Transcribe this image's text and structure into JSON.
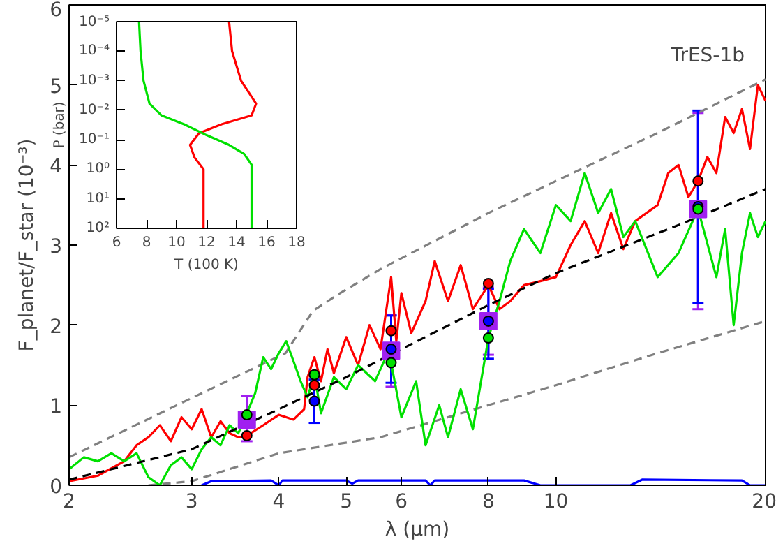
{
  "chart_data": [
    {
      "type": "line",
      "xlabel": "λ (μm)",
      "ylabel": "F_planet/F_star (10⁻³)",
      "annotations": [
        "TrES-1b"
      ],
      "log": "x",
      "xlim": [
        2,
        20
      ],
      "xticks": [
        2,
        3,
        4,
        5,
        6,
        8,
        10,
        20
      ],
      "ylim": [
        0,
        6
      ],
      "yticks": [
        0,
        1,
        2,
        3,
        4,
        5,
        6
      ],
      "grid": false,
      "series": [
        {
          "type": "line",
          "color": "#808080",
          "line_style": "dashed",
          "x": [
            2,
            3,
            4.09,
            4.48,
            4.9,
            5.6,
            8,
            10,
            14,
            20
          ],
          "values": [
            0.35,
            1.09,
            1.65,
            2.18,
            2.4,
            2.7,
            3.4,
            3.8,
            4.4,
            5.07
          ]
        },
        {
          "type": "line",
          "color": "#808080",
          "line_style": "dashed",
          "x": [
            2.6,
            3,
            4,
            5.6,
            8,
            10,
            14,
            20
          ],
          "values": [
            0,
            0.05,
            0.4,
            0.6,
            1.0,
            1.25,
            1.65,
            2.05
          ]
        },
        {
          "type": "line",
          "color": "#ff0000",
          "line_style": "solid",
          "x": [
            2,
            2.2,
            2.4,
            2.5,
            2.6,
            2.7,
            2.8,
            2.9,
            3.0,
            3.1,
            3.2,
            3.3,
            3.4,
            3.5,
            3.6,
            3.8,
            4.0,
            4.2,
            4.35,
            4.4,
            4.5,
            4.6,
            4.7,
            4.8,
            5.0,
            5.2,
            5.4,
            5.6,
            5.8,
            5.9,
            6.0,
            6.2,
            6.5,
            6.7,
            7.0,
            7.3,
            7.6,
            8.0,
            8.3,
            8.6,
            9.0,
            9.5,
            10,
            10.5,
            11,
            11.5,
            12,
            12.5,
            13,
            14,
            14.5,
            15,
            15.5,
            16,
            16.5,
            17,
            17.5,
            18,
            18.5,
            19,
            19.5,
            20
          ],
          "values": [
            0.05,
            0.12,
            0.3,
            0.5,
            0.6,
            0.75,
            0.55,
            0.85,
            0.7,
            0.95,
            0.6,
            0.8,
            0.65,
            0.6,
            0.62,
            0.75,
            0.88,
            0.82,
            0.95,
            1.35,
            1.6,
            1.3,
            1.7,
            1.4,
            1.85,
            1.5,
            2.0,
            1.7,
            2.6,
            1.8,
            2.4,
            1.9,
            2.3,
            2.8,
            2.3,
            2.75,
            2.2,
            2.5,
            2.2,
            2.3,
            2.5,
            2.55,
            2.6,
            3.0,
            3.3,
            2.9,
            3.4,
            2.95,
            3.3,
            3.5,
            3.9,
            4.0,
            3.6,
            3.8,
            4.1,
            3.9,
            4.6,
            4.4,
            4.7,
            4.2,
            5.0,
            4.8
          ]
        },
        {
          "type": "line",
          "color": "#00e000",
          "line_style": "solid",
          "x": [
            2,
            2.1,
            2.2,
            2.3,
            2.4,
            2.5,
            2.6,
            2.7,
            2.8,
            2.9,
            3.0,
            3.1,
            3.2,
            3.3,
            3.4,
            3.5,
            3.6,
            3.7,
            3.8,
            3.9,
            4.0,
            4.1,
            4.2,
            4.3,
            4.4,
            4.5,
            4.6,
            4.8,
            5.0,
            5.2,
            5.5,
            5.7,
            5.8,
            6.0,
            6.3,
            6.5,
            6.8,
            7.0,
            7.3,
            7.6,
            8.0,
            8.3,
            8.6,
            9.0,
            9.5,
            10,
            10.5,
            11,
            11.5,
            12,
            12.5,
            13,
            14,
            15,
            16,
            17,
            17.5,
            18,
            18.5,
            19,
            19.5,
            20
          ],
          "values": [
            0.2,
            0.35,
            0.3,
            0.4,
            0.3,
            0.4,
            0.1,
            0.0,
            0.25,
            0.35,
            0.2,
            0.45,
            0.6,
            0.5,
            0.75,
            0.65,
            0.9,
            1.15,
            1.6,
            1.45,
            1.65,
            1.8,
            1.55,
            1.3,
            1.1,
            1.38,
            0.9,
            1.35,
            1.2,
            1.5,
            1.3,
            1.6,
            1.53,
            0.85,
            1.3,
            0.5,
            1.0,
            0.6,
            1.2,
            0.7,
            1.84,
            2.3,
            2.8,
            3.2,
            2.9,
            3.5,
            3.3,
            3.9,
            3.4,
            3.7,
            3.1,
            3.3,
            2.6,
            2.9,
            3.45,
            2.6,
            3.2,
            2.0,
            2.9,
            3.4,
            3.1,
            3.3
          ]
        },
        {
          "type": "line",
          "color": "#000000",
          "line_style": "dashed",
          "x": [
            2,
            3,
            4,
            5,
            6,
            8,
            10,
            15,
            20
          ],
          "values": [
            0.07,
            0.45,
            0.95,
            1.35,
            1.7,
            2.25,
            2.65,
            3.25,
            3.7
          ]
        },
        {
          "type": "line",
          "color": "#0000ff",
          "line_style": "solid",
          "x": [
            3.1,
            3.2,
            3.9,
            4.0,
            4.05,
            5.0,
            5.1,
            5.2,
            6.5,
            6.6,
            6.7,
            9.0,
            9.5,
            12.8,
            13.3,
            18.5,
            19,
            20
          ],
          "values": [
            0,
            0.05,
            0.06,
            0,
            0.06,
            0.06,
            0.02,
            0.06,
            0.06,
            0,
            0.06,
            0.06,
            0,
            0,
            0.07,
            0.06,
            0,
            0
          ]
        },
        {
          "type": "scatter",
          "color": "#a020f0",
          "marker": "square",
          "x": [
            3.6,
            5.8,
            8,
            16
          ],
          "values": [
            0.82,
            1.68,
            2.05,
            3.45
          ],
          "errors": [
            [
              0.55,
              1.12
            ],
            0.45,
            0.42,
            [
              2.2,
              4.65
            ]
          ]
        },
        {
          "type": "scatter",
          "color": "#0000ff",
          "marker": "circle",
          "x": [
            4.5,
            5.8,
            8,
            16
          ],
          "values": [
            1.05,
            1.7,
            2.05,
            3.48
          ],
          "errors": [
            0.27,
            0.42,
            [
              1.58,
              2.45
            ],
            1.2
          ]
        },
        {
          "type": "scatter",
          "color": "#ff0000",
          "marker": "circle",
          "x": [
            3.6,
            4.5,
            5.8,
            8,
            16
          ],
          "values": [
            0.62,
            1.25,
            1.93,
            2.52,
            3.8
          ]
        },
        {
          "type": "scatter",
          "color": "#00e000",
          "marker": "circle",
          "x": [
            3.6,
            4.5,
            5.8,
            8,
            16
          ],
          "values": [
            0.88,
            1.38,
            1.53,
            1.84,
            3.45
          ]
        }
      ]
    },
    {
      "type": "line",
      "xlabel": "T (100 K)",
      "ylabel": "P (bar)",
      "log": "y",
      "xlim": [
        6,
        18
      ],
      "xticks": [
        6,
        8,
        10,
        12,
        14,
        16,
        18
      ],
      "ylim": [
        100,
        1e-05
      ],
      "yticks": [
        {
          "value": 1e-05,
          "label": "10⁻⁵"
        },
        {
          "value": 0.0001,
          "label": "10⁻⁴"
        },
        {
          "value": 0.001,
          "label": "10⁻³"
        },
        {
          "value": 0.01,
          "label": "10⁻²"
        },
        {
          "value": 0.1,
          "label": "10⁻¹"
        },
        {
          "value": 1,
          "label": "10⁰"
        },
        {
          "value": 10,
          "label": "10¹"
        },
        {
          "value": 100,
          "label": "10²"
        }
      ],
      "grid": false,
      "series": [
        {
          "color": "#ff0000",
          "x": [
            13.5,
            13.7,
            14.3,
            15.3,
            15.0,
            13.0,
            11.5,
            10.9,
            11.2,
            11.8,
            11.8
          ],
          "values": [
            1e-05,
            0.0001,
            0.001,
            0.006,
            0.015,
            0.03,
            0.06,
            0.15,
            0.4,
            1,
            100
          ]
        },
        {
          "color": "#00e000",
          "x": [
            7.5,
            7.6,
            7.8,
            8.2,
            9.0,
            10.5,
            12.0,
            13.5,
            14.5,
            15.0,
            15.0
          ],
          "values": [
            1e-05,
            0.0001,
            0.001,
            0.006,
            0.015,
            0.03,
            0.07,
            0.15,
            0.3,
            0.7,
            100
          ]
        }
      ]
    }
  ]
}
